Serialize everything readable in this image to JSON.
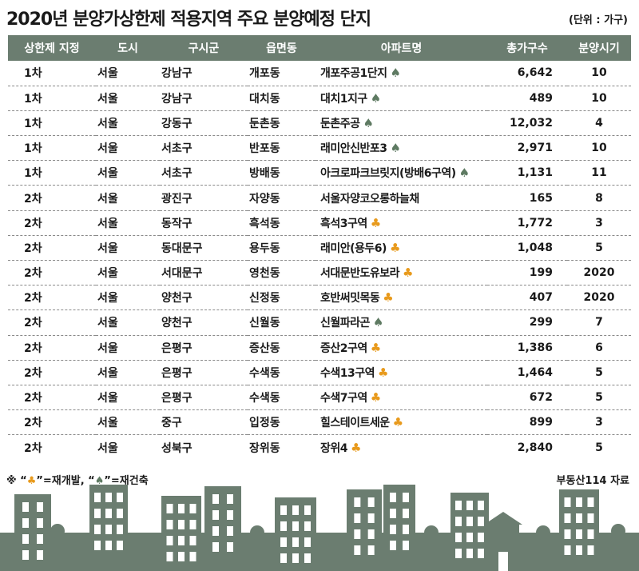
{
  "title": "2020년 분양가상한제 적용지역 주요 분양예정 단지",
  "unit_note": "(단위 : 가구)",
  "columns": [
    "상한제 지정",
    "도시",
    "구시군",
    "읍면동",
    "아파트명",
    "총가구수",
    "분양시기"
  ],
  "rows": [
    {
      "round": "1차",
      "city": "서울",
      "gu": "강남구",
      "dong": "개포동",
      "apt": "개포주공1단지",
      "sym": "spade",
      "units": "6,642",
      "time": "10"
    },
    {
      "round": "1차",
      "city": "서울",
      "gu": "강남구",
      "dong": "대치동",
      "apt": "대치1지구",
      "sym": "spade",
      "units": "489",
      "time": "10"
    },
    {
      "round": "1차",
      "city": "서울",
      "gu": "강동구",
      "dong": "둔촌동",
      "apt": "둔촌주공",
      "sym": "spade",
      "units": "12,032",
      "time": "4"
    },
    {
      "round": "1차",
      "city": "서울",
      "gu": "서초구",
      "dong": "반포동",
      "apt": "래미안신반포3",
      "sym": "spade",
      "units": "2,971",
      "time": "10"
    },
    {
      "round": "1차",
      "city": "서울",
      "gu": "서초구",
      "dong": "방배동",
      "apt": "아크로파크브릿지(방배6구역)",
      "sym": "spade",
      "units": "1,131",
      "time": "11"
    },
    {
      "round": "2차",
      "city": "서울",
      "gu": "광진구",
      "dong": "자양동",
      "apt": "서울자양코오롱하늘채",
      "sym": "",
      "units": "165",
      "time": "8"
    },
    {
      "round": "2차",
      "city": "서울",
      "gu": "동작구",
      "dong": "흑석동",
      "apt": "흑석3구역",
      "sym": "club",
      "units": "1,772",
      "time": "3"
    },
    {
      "round": "2차",
      "city": "서울",
      "gu": "동대문구",
      "dong": "용두동",
      "apt": "래미안(용두6)",
      "sym": "club",
      "units": "1,048",
      "time": "5"
    },
    {
      "round": "2차",
      "city": "서울",
      "gu": "서대문구",
      "dong": "영천동",
      "apt": "서대문반도유보라",
      "sym": "club",
      "units": "199",
      "time": "2020"
    },
    {
      "round": "2차",
      "city": "서울",
      "gu": "양천구",
      "dong": "신정동",
      "apt": "호반써밋목동",
      "sym": "club",
      "units": "407",
      "time": "2020"
    },
    {
      "round": "2차",
      "city": "서울",
      "gu": "양천구",
      "dong": "신월동",
      "apt": "신월파라곤",
      "sym": "spade",
      "units": "299",
      "time": "7"
    },
    {
      "round": "2차",
      "city": "서울",
      "gu": "은평구",
      "dong": "증산동",
      "apt": "증산2구역",
      "sym": "club",
      "units": "1,386",
      "time": "6"
    },
    {
      "round": "2차",
      "city": "서울",
      "gu": "은평구",
      "dong": "수색동",
      "apt": "수색13구역",
      "sym": "club",
      "units": "1,464",
      "time": "5"
    },
    {
      "round": "2차",
      "city": "서울",
      "gu": "은평구",
      "dong": "수색동",
      "apt": "수색7구역",
      "sym": "club",
      "units": "672",
      "time": "5"
    },
    {
      "round": "2차",
      "city": "서울",
      "gu": "중구",
      "dong": "입정동",
      "apt": "힐스테이트세운",
      "sym": "club",
      "units": "899",
      "time": "3"
    },
    {
      "round": "2차",
      "city": "서울",
      "gu": "성북구",
      "dong": "장위동",
      "apt": "장위4",
      "sym": "club",
      "units": "2,840",
      "time": "5"
    }
  ],
  "symbols": {
    "spade": "♠",
    "club": "♣"
  },
  "footnote": {
    "prefix": "※ “",
    "club_mid": "”=재개발, “",
    "spade_end": "”=재건축"
  },
  "source": "부동산114 자료",
  "colors": {
    "header_bg": "#6b7d70",
    "spade": "#5e7a62",
    "club": "#e89a1c",
    "building": "#6b7d70"
  }
}
